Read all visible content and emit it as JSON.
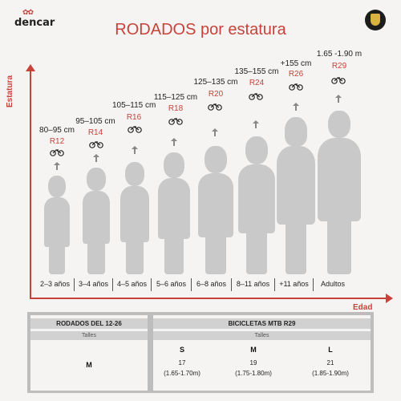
{
  "brand": {
    "logo_text": "dencar"
  },
  "title": "RODADOS por estatura",
  "axes": {
    "y_label": "Estatura",
    "x_label": "Edad"
  },
  "columns": [
    {
      "height": "80–95 cm",
      "rodado": "R12",
      "age": "2–3 años"
    },
    {
      "height": "95–105 cm",
      "rodado": "R14",
      "age": "3–4 años"
    },
    {
      "height": "105–115 cm",
      "rodado": "R16",
      "age": "4–5 años"
    },
    {
      "height": "115–125 cm",
      "rodado": "R18",
      "age": "5–6 años"
    },
    {
      "height": "125–135 cm",
      "rodado": "R20",
      "age": "6–8 años"
    },
    {
      "height": "135–155 cm",
      "rodado": "R24",
      "age": "8–11 años"
    },
    {
      "height": "+155 cm",
      "rodado": "R26",
      "age": "+11 años"
    },
    {
      "height": "1.65 -1.90 m",
      "rodado": "R29",
      "age": "Adultos"
    }
  ],
  "table_left": {
    "header": "RODADOS DEL 12-26",
    "sub": "Talles",
    "size": "M"
  },
  "table_right": {
    "header": "BICICLETAS MTB R29",
    "sub": "Talles",
    "sizes": [
      {
        "label": "S",
        "value": "17",
        "range": "(1.65-1.70m)"
      },
      {
        "label": "M",
        "value": "19",
        "range": "(1.75-1.80m)"
      },
      {
        "label": "L",
        "value": "21",
        "range": "(1.85-1.90m)"
      }
    ]
  },
  "colors": {
    "accent": "#c8423b",
    "figure": "#c9c9c9"
  }
}
